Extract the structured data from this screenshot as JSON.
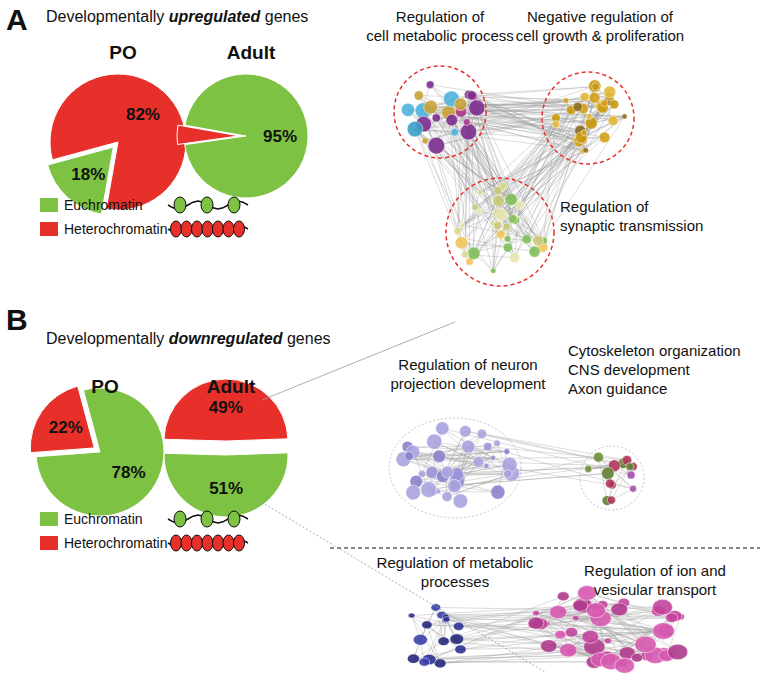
{
  "chart_data": [
    {
      "type": "pie",
      "title": "PO",
      "categories": [
        "Euchromatin",
        "Heterochromatin"
      ],
      "values": [
        18,
        82
      ],
      "value_labels": [
        "18%",
        "82%"
      ],
      "colors": [
        "#7dc242",
        "#e8302b"
      ],
      "data_labels": true
    },
    {
      "type": "pie",
      "title": "Adult",
      "categories": [
        "Euchromatin",
        "Heterochromatin"
      ],
      "values": [
        95,
        5
      ],
      "value_labels": [
        "95%",
        null
      ],
      "colors": [
        "#7dc242",
        "#e8302b"
      ],
      "data_labels": true
    },
    {
      "type": "pie",
      "title": "PO",
      "categories": [
        "Euchromatin",
        "Heterochromatin"
      ],
      "values": [
        78,
        22
      ],
      "value_labels": [
        "78%",
        "22%"
      ],
      "colors": [
        "#7dc242",
        "#e8302b"
      ],
      "data_labels": true
    },
    {
      "type": "pie",
      "title": "Adult",
      "categories": [
        "Euchromatin",
        "Heterochromatin"
      ],
      "values": [
        51,
        49
      ],
      "value_labels": [
        "51%",
        "49%"
      ],
      "colors": [
        "#7dc242",
        "#e8302b"
      ],
      "data_labels": true
    }
  ],
  "panels": [
    {
      "letter": "A",
      "heading": [
        "Developmentally",
        "upregulated",
        "genes"
      ],
      "charts": [
        0,
        1
      ],
      "network_labels": [
        [
          "Regulation of",
          "cell metabolic process"
        ],
        [
          "Negative regulation of",
          "cell growth & proliferation"
        ],
        [
          "Regulation of",
          "synaptic transmission"
        ]
      ]
    },
    {
      "letter": "B",
      "heading": [
        "Developmentally",
        "downregulated",
        "genes"
      ],
      "charts": [
        2,
        3
      ],
      "network_labels": [
        [
          "Regulation of neuron",
          "projection development"
        ],
        [
          "Cytoskeleton organization",
          "CNS development",
          "Axon guidance"
        ],
        [
          "Regulation of metabolic",
          "processes"
        ],
        [
          "Regulation of ion and",
          "vesicular transport"
        ]
      ]
    }
  ]
}
